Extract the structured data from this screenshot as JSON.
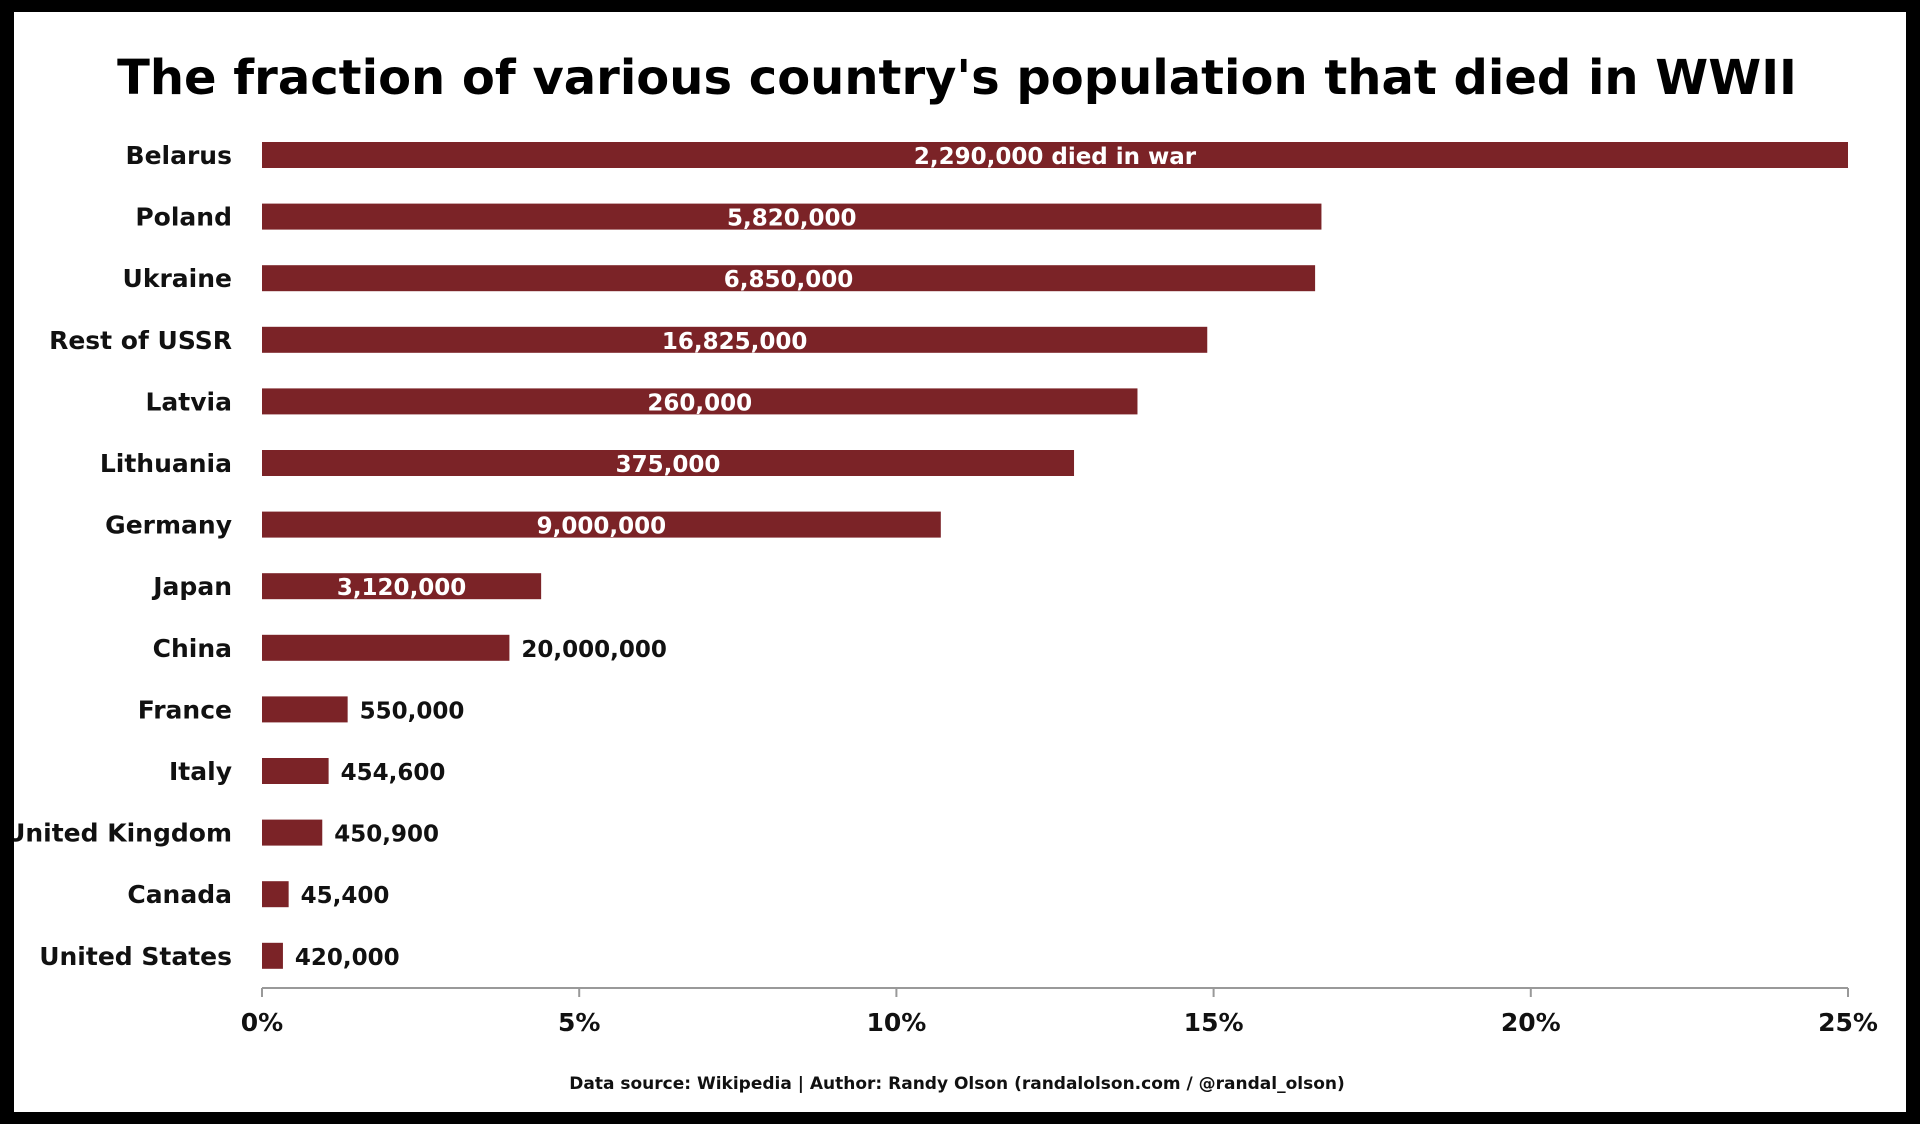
{
  "chart_data": {
    "type": "bar",
    "orientation": "horizontal",
    "title": "The fraction of various country's population that died in WWII",
    "xlabel": "",
    "ylabel": "",
    "xlim": [
      0,
      25
    ],
    "x_ticks": [
      0,
      5,
      10,
      15,
      20,
      25
    ],
    "x_tick_labels": [
      "0%",
      "5%",
      "10%",
      "15%",
      "20%",
      "25%"
    ],
    "grid": false,
    "legend": "none",
    "categories": [
      "Belarus",
      "Poland",
      "Ukraine",
      "Rest of USSR",
      "Latvia",
      "Lithuania",
      "Germany",
      "Japan",
      "China",
      "France",
      "Italy",
      "United Kingdom",
      "Canada",
      "United States"
    ],
    "values": [
      25.0,
      16.7,
      16.6,
      14.9,
      13.8,
      12.8,
      10.7,
      4.4,
      3.9,
      1.35,
      1.05,
      0.95,
      0.42,
      0.33
    ],
    "data_labels": [
      "2,290,000 died in war",
      "5,820,000",
      "6,850,000",
      "16,825,000",
      "260,000",
      "375,000",
      "9,000,000",
      "3,120,000",
      "20,000,000",
      "550,000",
      "454,600",
      "450,900",
      "45,400",
      "420,000"
    ],
    "bar_color": "#7b2327",
    "source_note": "Data source: Wikipedia | Author: Randy Olson (randalolson.com / @randal_olson)"
  }
}
